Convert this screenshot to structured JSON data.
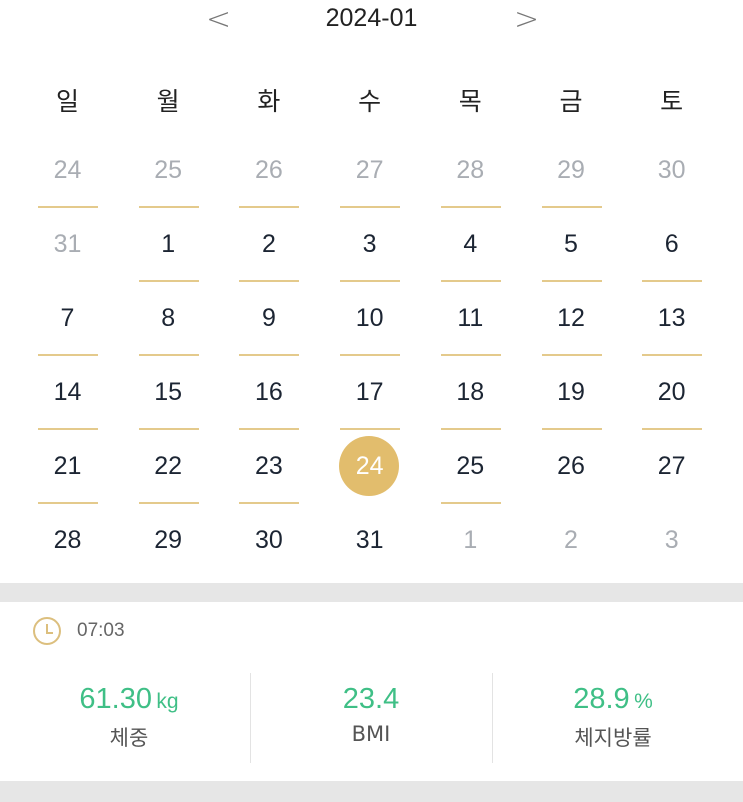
{
  "header": {
    "title": "2024-01",
    "prev_icon": "chevron-left-icon",
    "next_icon": "chevron-right-icon"
  },
  "weekdays": [
    "일",
    "월",
    "화",
    "수",
    "목",
    "금",
    "토"
  ],
  "days": [
    {
      "n": "24",
      "other": true,
      "mark": true
    },
    {
      "n": "25",
      "other": true,
      "mark": true
    },
    {
      "n": "26",
      "other": true,
      "mark": true
    },
    {
      "n": "27",
      "other": true,
      "mark": true
    },
    {
      "n": "28",
      "other": true,
      "mark": true
    },
    {
      "n": "29",
      "other": true,
      "mark": true
    },
    {
      "n": "30",
      "other": true,
      "mark": false
    },
    {
      "n": "31",
      "other": true,
      "mark": false
    },
    {
      "n": "1",
      "mark": true
    },
    {
      "n": "2",
      "mark": true
    },
    {
      "n": "3",
      "mark": true
    },
    {
      "n": "4",
      "mark": true
    },
    {
      "n": "5",
      "mark": true
    },
    {
      "n": "6",
      "mark": true
    },
    {
      "n": "7",
      "mark": true
    },
    {
      "n": "8",
      "mark": true
    },
    {
      "n": "9",
      "mark": true
    },
    {
      "n": "10",
      "mark": true
    },
    {
      "n": "11",
      "mark": true
    },
    {
      "n": "12",
      "mark": true
    },
    {
      "n": "13",
      "mark": true
    },
    {
      "n": "14",
      "mark": true
    },
    {
      "n": "15",
      "mark": true
    },
    {
      "n": "16",
      "mark": true
    },
    {
      "n": "17",
      "mark": true
    },
    {
      "n": "18",
      "mark": true
    },
    {
      "n": "19",
      "mark": true
    },
    {
      "n": "20",
      "mark": true
    },
    {
      "n": "21",
      "mark": true
    },
    {
      "n": "22",
      "mark": true
    },
    {
      "n": "23",
      "mark": true
    },
    {
      "n": "24",
      "selected": true
    },
    {
      "n": "25",
      "mark": true
    },
    {
      "n": "26"
    },
    {
      "n": "27"
    },
    {
      "n": "28"
    },
    {
      "n": "29"
    },
    {
      "n": "30"
    },
    {
      "n": "31"
    },
    {
      "n": "1",
      "other": true
    },
    {
      "n": "2",
      "other": true
    },
    {
      "n": "3",
      "other": true
    }
  ],
  "record": {
    "time": "07:03",
    "metrics": [
      {
        "value": "61.30",
        "unit": "kg",
        "label": "체중"
      },
      {
        "value": "23.4",
        "unit": "",
        "label": "BMI"
      },
      {
        "value": "28.9",
        "unit": "%",
        "label": "체지방률"
      }
    ]
  },
  "colors": {
    "accent": "#e2bd6d",
    "value": "#3fbf86"
  }
}
